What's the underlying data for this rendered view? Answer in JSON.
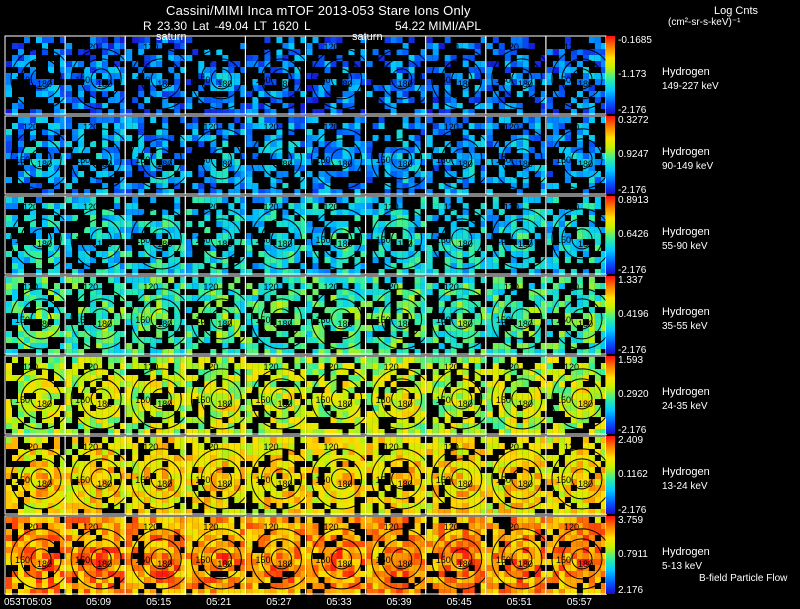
{
  "title": "Cassini/MIMI Inca mTOF  2013-053   Stare   Ions Only",
  "info_line": "R      23.30 Lat -49.04 LT 1620 L",
  "info_line_right": "54.22  MIMI/APL",
  "saturn_labels": [
    "saturn",
    "saturn"
  ],
  "colorbar_title": "Log Cnts",
  "colorbar_units": "(cm²-sr-s-keV)⁻¹",
  "footnote": "B-field Particle Flow",
  "time_labels": [
    "053T05:03",
    "05:09",
    "05:15",
    "05:21",
    "05:27",
    "05:33",
    "05:39",
    "05:45",
    "05:51",
    "05:57"
  ],
  "contour_labels": [
    "120",
    "150",
    "180"
  ],
  "chart_data": {
    "type": "heatmap",
    "title": "Cassini/MIMI Inca mTOF  2013-053   Stare   Ions Only",
    "columns": 10,
    "rows": [
      {
        "species": "Hydrogen",
        "range": "149-227 keV",
        "max": "-0.1685",
        "mid": "-1.173",
        "min": "-2.176"
      },
      {
        "species": "Hydrogen",
        "range": "90-149 keV",
        "max": "0.3272",
        "mid": "0.9247",
        "min": "-2.176"
      },
      {
        "species": "Hydrogen",
        "range": "55-90 keV",
        "max": "0.8913",
        "mid": "0.6426",
        "min": "-2.176"
      },
      {
        "species": "Hydrogen",
        "range": "35-55 keV",
        "max": "1.337",
        "mid": "0.4196",
        "min": "-2.176"
      },
      {
        "species": "Hydrogen",
        "range": "24-35 keV",
        "max": "1.593",
        "mid": "0.2920",
        "min": "-2.176"
      },
      {
        "species": "Hydrogen",
        "range": "13-24 keV",
        "max": "2.409",
        "mid": "0.1162",
        "min": "-2.176"
      },
      {
        "species": "Hydrogen",
        "range": "5-13 keV",
        "max": "3.759",
        "mid": "0.7911",
        "min": "2.176"
      }
    ],
    "row_level": [
      0.16,
      0.22,
      0.32,
      0.42,
      0.58,
      0.68,
      0.8
    ]
  }
}
